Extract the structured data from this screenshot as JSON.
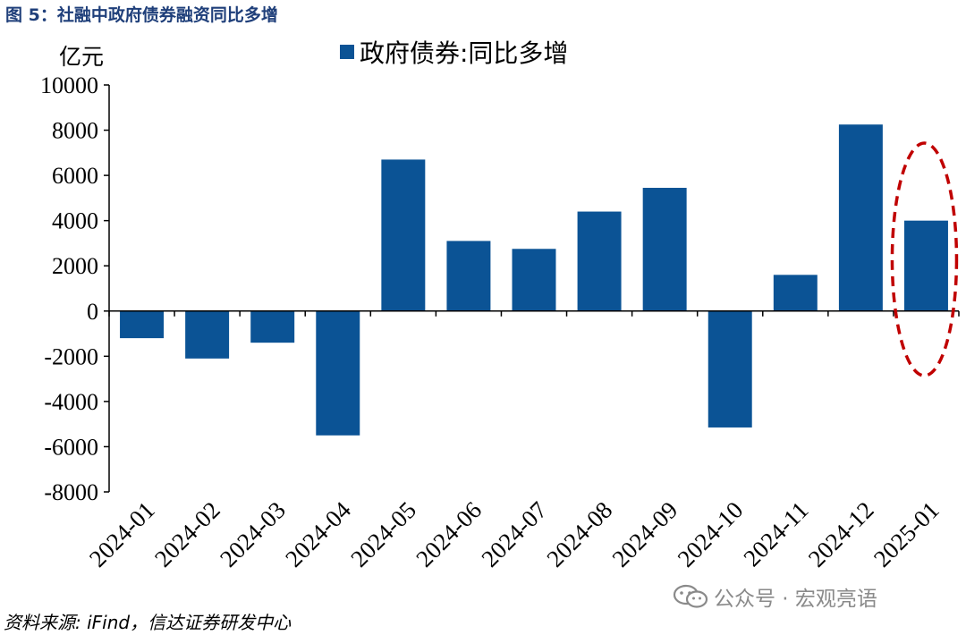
{
  "figure_title": "图 5：社融中政府债券融资同比多增",
  "unit_label": "亿元",
  "source_text": "资料来源: iFind，信达证券研发中心",
  "watermark_text": "公众号 · 宏观亮语",
  "colors": {
    "bar": "#0b5395",
    "highlight": "#c00000",
    "title": "#1f3f7a"
  },
  "chart_data": {
    "type": "bar",
    "categories": [
      "2024-01",
      "2024-02",
      "2024-03",
      "2024-04",
      "2024-05",
      "2024-06",
      "2024-07",
      "2024-08",
      "2024-09",
      "2024-10",
      "2024-11",
      "2024-12",
      "2025-01"
    ],
    "series": [
      {
        "name": "政府债券:同比多增",
        "values": [
          -1200,
          -2100,
          -1400,
          -5500,
          6700,
          3100,
          2750,
          4400,
          5450,
          -5150,
          1600,
          8250,
          4000
        ]
      }
    ],
    "ylim": [
      -8000,
      10000
    ],
    "yticks": [
      10000,
      8000,
      6000,
      4000,
      2000,
      0,
      -2000,
      -4000,
      -6000,
      -8000
    ],
    "legend_position": "top",
    "grid": false,
    "highlighted_category": "2025-01"
  }
}
